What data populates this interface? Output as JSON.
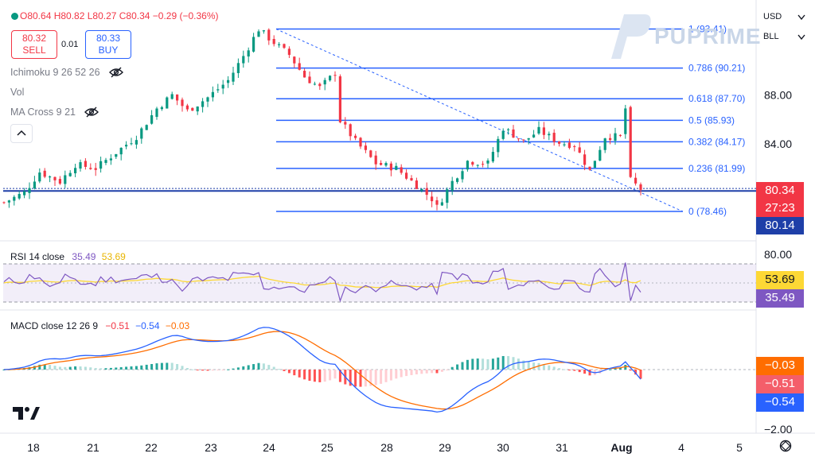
{
  "header": {
    "ohlc_text": "O80.64 H80.82 L80.27 C80.34 −0.29 (−0.36%)",
    "sell_price": "80.32",
    "sell_label": "SELL",
    "spread": "0.01",
    "buy_price": "80.33",
    "buy_label": "BUY"
  },
  "indicators": {
    "ichimoku": "Ichimoku 9 26 52 26",
    "vol": "Vol",
    "ma_cross": "MA Cross 9 21",
    "rsi_label": "RSI 14 close",
    "rsi_value": "35.49",
    "rsi_ma_value": "53.69",
    "macd_label": "MACD close 12 26 9",
    "macd_hist": "−0.51",
    "macd_line": "−0.54",
    "macd_signal": "−0.03"
  },
  "symbol_panel": {
    "currency": "USD",
    "unit": "BLL"
  },
  "watermark": "PUPRIME",
  "price_tags": {
    "last": "80.34",
    "countdown": "27:23",
    "bid": "80.14"
  },
  "indicator_tags": {
    "rsi_ma": "53.69",
    "rsi": "35.49",
    "signal": "−0.03",
    "hist": "−0.51",
    "macd": "−0.54"
  },
  "colors": {
    "up": "#089981",
    "down": "#F23645",
    "fib": "#2962FF",
    "rsi": "#7E57C2",
    "rsi_ma": "#FDD835",
    "macd": "#2962FF",
    "signal": "#FF6D00"
  },
  "chart_data": [
    {
      "type": "candlestick",
      "title": "",
      "x": [
        "18",
        "21",
        "22",
        "23",
        "24",
        "25",
        "28",
        "29",
        "30",
        "31",
        "Aug",
        "4",
        "5"
      ],
      "y_axis_labels": [
        "88.00",
        "84.00",
        "80.00"
      ],
      "last_price": 80.34,
      "horizontal_line": 80.14,
      "fibonacci": [
        {
          "label": "1 (93.41)",
          "level": 1,
          "price": 93.41
        },
        {
          "label": "0.786 (90.21)",
          "level": 0.786,
          "price": 90.21
        },
        {
          "label": "0.618 (87.70)",
          "level": 0.618,
          "price": 87.7
        },
        {
          "label": "0.5 (85.93)",
          "level": 0.5,
          "price": 85.93
        },
        {
          "label": "0.382 (84.17)",
          "level": 0.382,
          "price": 84.17
        },
        {
          "label": "0.236 (81.99)",
          "level": 0.236,
          "price": 81.99
        },
        {
          "label": "0 (78.46)",
          "level": 0,
          "price": 78.46
        }
      ],
      "trend_path": [
        {
          "t": 0,
          "p": 79.2
        },
        {
          "t": 4,
          "p": 80.0
        },
        {
          "t": 7,
          "p": 81.7
        },
        {
          "t": 11,
          "p": 80.9
        },
        {
          "t": 14,
          "p": 82.3
        },
        {
          "t": 18,
          "p": 82.0
        },
        {
          "t": 22,
          "p": 83.3
        },
        {
          "t": 26,
          "p": 84.6
        },
        {
          "t": 30,
          "p": 86.9
        },
        {
          "t": 33,
          "p": 88.0
        },
        {
          "t": 36,
          "p": 86.7
        },
        {
          "t": 40,
          "p": 87.8
        },
        {
          "t": 44,
          "p": 89.2
        },
        {
          "t": 47,
          "p": 91.2
        },
        {
          "t": 50,
          "p": 93.4
        },
        {
          "t": 53,
          "p": 92.3
        },
        {
          "t": 56,
          "p": 91.3
        },
        {
          "t": 59,
          "p": 89.5
        },
        {
          "t": 62,
          "p": 88.6
        },
        {
          "t": 65,
          "p": 89.8
        },
        {
          "t": 66,
          "p": 85.9
        },
        {
          "t": 69,
          "p": 84.2
        },
        {
          "t": 73,
          "p": 82.4
        },
        {
          "t": 77,
          "p": 82.0
        },
        {
          "t": 81,
          "p": 80.6
        },
        {
          "t": 84,
          "p": 79.5
        },
        {
          "t": 85,
          "p": 78.8
        },
        {
          "t": 88,
          "p": 80.9
        },
        {
          "t": 91,
          "p": 82.6
        },
        {
          "t": 95,
          "p": 82.4
        },
        {
          "t": 98,
          "p": 85.3
        },
        {
          "t": 102,
          "p": 84.2
        },
        {
          "t": 105,
          "p": 85.1
        },
        {
          "t": 109,
          "p": 84.1
        },
        {
          "t": 112,
          "p": 83.9
        },
        {
          "t": 115,
          "p": 81.8
        },
        {
          "t": 118,
          "p": 84.6
        },
        {
          "t": 121,
          "p": 84.6
        },
        {
          "t": 122,
          "p": 86.9
        },
        {
          "t": 123,
          "p": 81.0
        },
        {
          "t": 125,
          "p": 80.3
        }
      ],
      "rsi": {
        "levels": [
          80,
          53.69,
          35.49
        ],
        "axis_label": "80.00",
        "last": 35.49,
        "ma_last": 53.69
      },
      "macd": {
        "axis_label": "−2.00",
        "macd_last": -0.54,
        "signal_last": -0.03,
        "hist_last": -0.51
      }
    }
  ]
}
